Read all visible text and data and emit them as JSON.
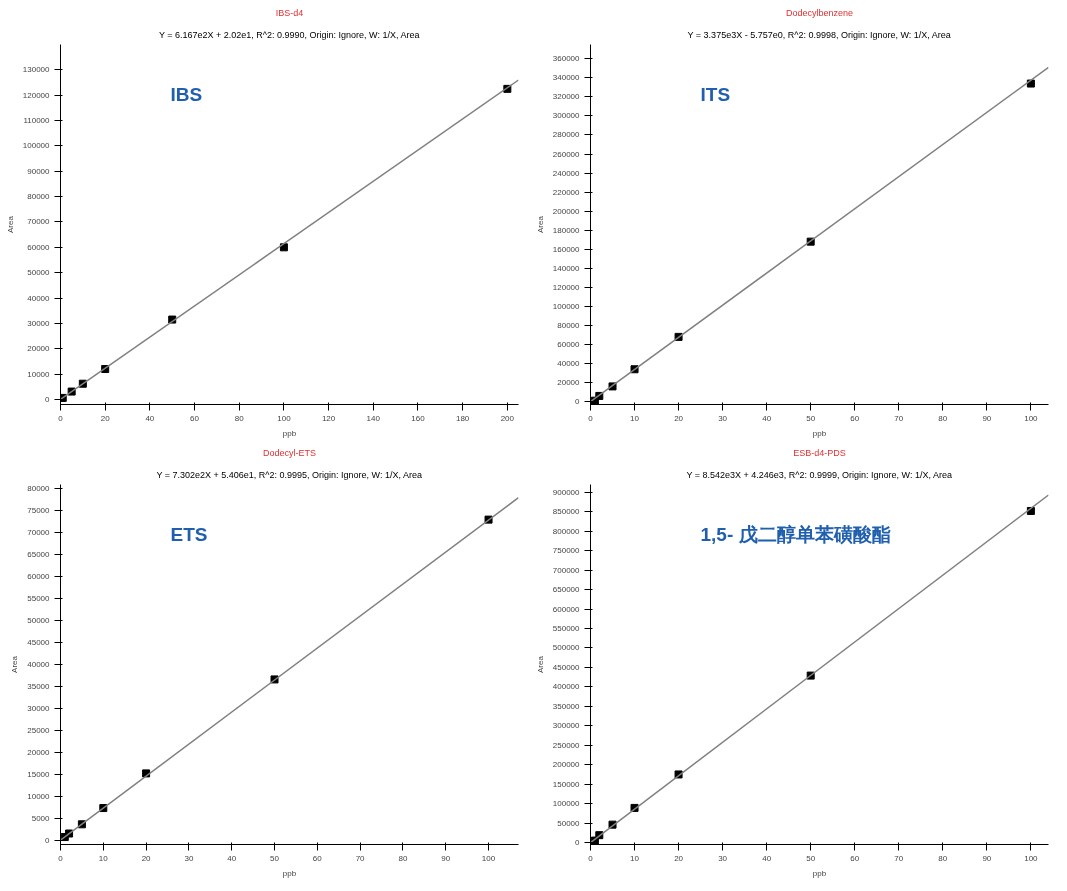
{
  "chart_data": [
    {
      "type": "scatter",
      "title": "IBS-d4",
      "subtitle": "Y = 6.167e2X + 2.02e1, R^2: 0.9990, Origin: Ignore, W: 1/X, Area",
      "xlabel": "ppb",
      "ylabel": "Area",
      "annotations": [
        "IBS"
      ],
      "grid": false,
      "xlim": [
        0,
        205
      ],
      "ylim": [
        -2000,
        140000
      ],
      "xticks": [
        0,
        20,
        40,
        60,
        80,
        100,
        120,
        140,
        160,
        180,
        200
      ],
      "yticks": [
        0,
        10000,
        20000,
        30000,
        40000,
        50000,
        60000,
        70000,
        80000,
        90000,
        100000,
        110000,
        120000,
        130000
      ],
      "series": [
        {
          "color": "#000000",
          "marker": "square",
          "x": [
            1,
            5,
            10,
            20,
            50,
            100,
            200
          ],
          "values": [
            600,
            3100,
            6200,
            12000,
            31500,
            60000,
            122500
          ]
        },
        {
          "type": "line",
          "color": "#808080",
          "x": [
            0,
            205
          ],
          "values": [
            0,
            126000
          ]
        }
      ]
    },
    {
      "type": "scatter",
      "title": "Dodecylbenzene",
      "subtitle": "Y = 3.375e3X - 5.757e0, R^2: 0.9998, Origin: Ignore, W: 1/X, Area",
      "xlabel": "ppb",
      "ylabel": "Area",
      "annotations": [
        "ITS"
      ],
      "grid": false,
      "xlim": [
        0,
        104
      ],
      "ylim": [
        -3000,
        375000
      ],
      "xticks": [
        0,
        10,
        20,
        30,
        40,
        50,
        60,
        70,
        80,
        90,
        100
      ],
      "yticks": [
        0,
        20000,
        40000,
        60000,
        80000,
        100000,
        120000,
        140000,
        160000,
        180000,
        200000,
        220000,
        240000,
        260000,
        280000,
        300000,
        320000,
        340000,
        360000
      ],
      "series": [
        {
          "color": "#000000",
          "marker": "square",
          "x": [
            1,
            2,
            5,
            10,
            20,
            50,
            100
          ],
          "values": [
            1000,
            6000,
            16000,
            34000,
            68000,
            168000,
            334000
          ]
        },
        {
          "type": "line",
          "color": "#808080",
          "x": [
            0,
            104
          ],
          "values": [
            0,
            351000
          ]
        }
      ]
    },
    {
      "type": "scatter",
      "title": "Dodecyl-ETS",
      "subtitle": "Y = 7.302e2X + 5.406e1, R^2: 0.9995, Origin: Ignore, W: 1/X, Area",
      "xlabel": "ppb",
      "ylabel": "Area",
      "annotations": [
        "ETS"
      ],
      "grid": false,
      "xlim": [
        0,
        107
      ],
      "ylim": [
        -1000,
        81000
      ],
      "xticks": [
        0,
        10,
        20,
        30,
        40,
        50,
        60,
        70,
        80,
        90,
        100
      ],
      "yticks": [
        0,
        5000,
        10000,
        15000,
        20000,
        25000,
        30000,
        35000,
        40000,
        45000,
        50000,
        55000,
        60000,
        65000,
        70000,
        75000,
        80000
      ],
      "series": [
        {
          "color": "#000000",
          "marker": "square",
          "x": [
            1,
            2,
            5,
            10,
            20,
            50,
            100
          ],
          "values": [
            700,
            1500,
            3600,
            7300,
            15200,
            36600,
            73000
          ]
        },
        {
          "type": "line",
          "color": "#808080",
          "x": [
            0,
            107
          ],
          "values": [
            0,
            78000
          ]
        }
      ]
    },
    {
      "type": "scatter",
      "title": "ESB-d4-PDS",
      "subtitle": "Y = 8.542e3X + 4.246e3, R^2: 0.9999, Origin: Ignore, W: 1/X, Area",
      "xlabel": "ppb",
      "ylabel": "Area",
      "annotations": [
        "1,5- 戊二醇单苯磺酸酯"
      ],
      "grid": false,
      "xlim": [
        0,
        104
      ],
      "ylim": [
        -5000,
        920000
      ],
      "xticks": [
        0,
        10,
        20,
        30,
        40,
        50,
        60,
        70,
        80,
        90,
        100
      ],
      "yticks": [
        0,
        50000,
        100000,
        150000,
        200000,
        250000,
        300000,
        350000,
        400000,
        450000,
        500000,
        550000,
        600000,
        650000,
        700000,
        750000,
        800000,
        850000,
        900000
      ],
      "series": [
        {
          "color": "#000000",
          "marker": "square",
          "x": [
            1,
            2,
            5,
            10,
            20,
            50,
            100
          ],
          "values": [
            5000,
            19000,
            46000,
            89000,
            175000,
            429000,
            852000
          ]
        },
        {
          "type": "line",
          "color": "#808080",
          "x": [
            0,
            104
          ],
          "values": [
            0,
            893000
          ]
        }
      ]
    }
  ]
}
